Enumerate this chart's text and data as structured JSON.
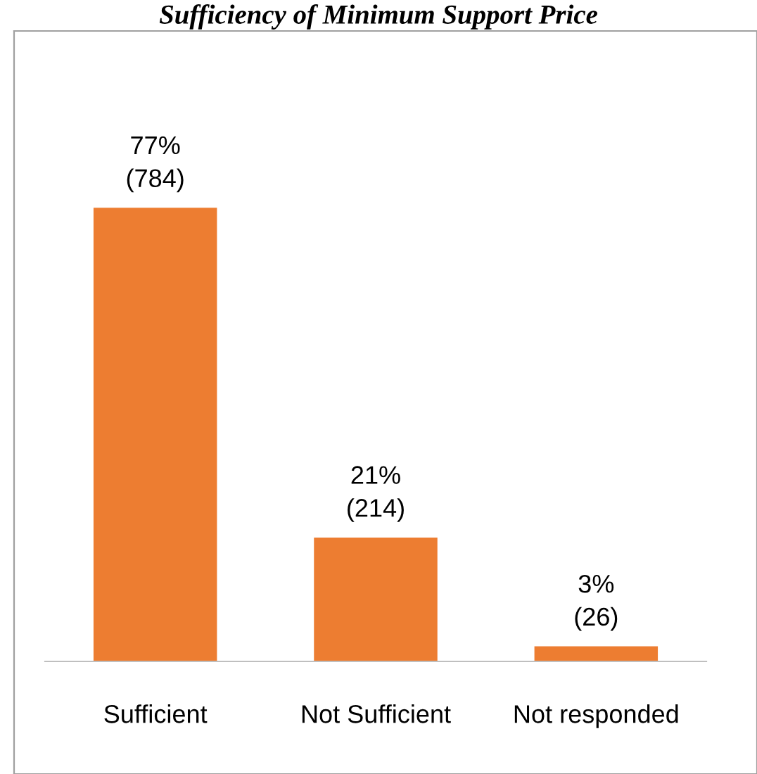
{
  "chart_data": {
    "type": "bar",
    "title": "Sufficiency of Minimum Support Price",
    "categories": [
      "Sufficient",
      "Not Sufficient",
      "Not responded"
    ],
    "values": [
      784,
      214,
      26
    ],
    "value_labels": [
      "77%\n(784)",
      "21%\n(214)",
      "3%\n(26)"
    ],
    "color": "#ed7d31",
    "grid": false,
    "legend": false
  }
}
